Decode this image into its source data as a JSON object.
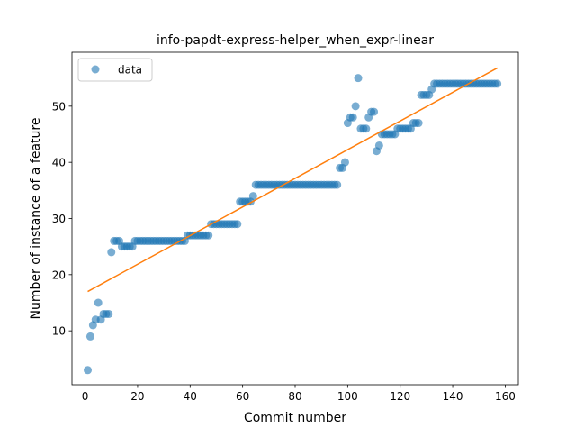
{
  "chart_data": {
    "type": "scatter",
    "title": "info-papdt-express-helper_when_expr-linear",
    "xlabel": "Commit number",
    "ylabel": "Number of instance of a feature",
    "xlim": [
      -5,
      165
    ],
    "ylim": [
      0.4,
      59.6
    ],
    "xticks": [
      0,
      20,
      40,
      60,
      80,
      100,
      120,
      140,
      160
    ],
    "yticks": [
      10,
      20,
      30,
      40,
      50
    ],
    "legend": {
      "position": "top-left",
      "entries": [
        {
          "label": "data"
        }
      ]
    },
    "grid": false,
    "colors": {
      "points": "#1f77b4",
      "fit": "#ff7f0e"
    },
    "series": [
      {
        "name": "data",
        "kind": "scatter",
        "x": [
          1,
          2,
          3,
          4,
          5,
          6,
          7,
          8,
          9,
          10,
          11,
          12,
          13,
          14,
          15,
          16,
          17,
          18,
          19,
          20,
          21,
          22,
          23,
          24,
          25,
          26,
          27,
          28,
          29,
          30,
          31,
          32,
          33,
          34,
          35,
          36,
          37,
          38,
          39,
          40,
          41,
          42,
          43,
          44,
          45,
          46,
          47,
          48,
          49,
          50,
          51,
          52,
          53,
          54,
          55,
          56,
          57,
          58,
          59,
          60,
          61,
          62,
          63,
          64,
          65,
          66,
          67,
          68,
          69,
          70,
          71,
          72,
          73,
          74,
          75,
          76,
          77,
          78,
          79,
          80,
          81,
          82,
          83,
          84,
          85,
          86,
          87,
          88,
          89,
          90,
          91,
          92,
          93,
          94,
          95,
          96,
          97,
          98,
          99,
          100,
          101,
          102,
          103,
          104,
          105,
          106,
          107,
          108,
          109,
          110,
          111,
          112,
          113,
          114,
          115,
          116,
          117,
          118,
          119,
          120,
          121,
          122,
          123,
          124,
          125,
          126,
          127,
          128,
          129,
          130,
          131,
          132,
          133,
          134,
          135,
          136,
          137,
          138,
          139,
          140,
          141,
          142,
          143,
          144,
          145,
          146,
          147,
          148,
          149,
          150,
          151,
          152,
          153,
          154,
          155,
          156,
          157
        ],
        "y": [
          3,
          9,
          11,
          12,
          15,
          12,
          13,
          13,
          13,
          24,
          26,
          26,
          26,
          25,
          25,
          25,
          25,
          25,
          26,
          26,
          26,
          26,
          26,
          26,
          26,
          26,
          26,
          26,
          26,
          26,
          26,
          26,
          26,
          26,
          26,
          26,
          26,
          26,
          27,
          27,
          27,
          27,
          27,
          27,
          27,
          27,
          27,
          29,
          29,
          29,
          29,
          29,
          29,
          29,
          29,
          29,
          29,
          29,
          33,
          33,
          33,
          33,
          33,
          34,
          36,
          36,
          36,
          36,
          36,
          36,
          36,
          36,
          36,
          36,
          36,
          36,
          36,
          36,
          36,
          36,
          36,
          36,
          36,
          36,
          36,
          36,
          36,
          36,
          36,
          36,
          36,
          36,
          36,
          36,
          36,
          36,
          39,
          39,
          40,
          47,
          48,
          48,
          50,
          55,
          46,
          46,
          46,
          48,
          49,
          49,
          42,
          43,
          45,
          45,
          45,
          45,
          45,
          45,
          46,
          46,
          46,
          46,
          46,
          46,
          47,
          47,
          47,
          52,
          52,
          52,
          52,
          53,
          54,
          54,
          54,
          54,
          54,
          54,
          54,
          54,
          54,
          54,
          54,
          54,
          54,
          54,
          54,
          54,
          54,
          54,
          54,
          54,
          54,
          54,
          54,
          54,
          54
        ]
      },
      {
        "name": "",
        "kind": "line",
        "x": [
          1,
          157
        ],
        "y": [
          17.0,
          56.8
        ]
      }
    ]
  }
}
